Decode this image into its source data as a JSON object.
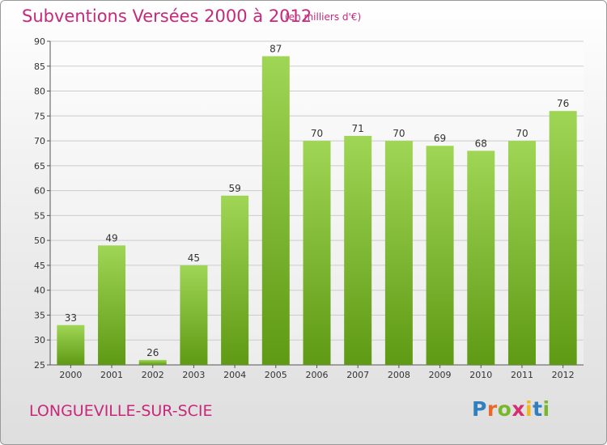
{
  "title": "Subventions Versées 2000 à 2012",
  "subtitle": "(en milliers d'€)",
  "commune": "LONGUEVILLE-SUR-SCIE",
  "logo": {
    "text": "Proxiti",
    "letters": [
      {
        "char": "P",
        "color": "#2f7fc1"
      },
      {
        "char": "r",
        "color": "#e8692b"
      },
      {
        "char": "o",
        "color": "#76b82a"
      },
      {
        "char": "x",
        "color": "#d62f6f"
      },
      {
        "char": "i",
        "color": "#f1b81c"
      },
      {
        "char": "t",
        "color": "#2f7fc1"
      },
      {
        "char": "i",
        "color": "#76b82a"
      }
    ]
  },
  "colors": {
    "accent": "#c8287a",
    "bar_top": "#9fd655",
    "bar_bottom": "#5f9a14"
  },
  "chart_data": {
    "type": "bar",
    "title": "Subventions Versées 2000 à 2012",
    "subtitle": "(en milliers d'€)",
    "categories": [
      "2000",
      "2001",
      "2002",
      "2003",
      "2004",
      "2005",
      "2006",
      "2007",
      "2008",
      "2009",
      "2010",
      "2011",
      "2012"
    ],
    "values": [
      33,
      49,
      26,
      45,
      59,
      87,
      70,
      71,
      70,
      69,
      68,
      70,
      76
    ],
    "ylim": [
      25,
      90
    ],
    "yticks": [
      25,
      30,
      35,
      40,
      45,
      50,
      55,
      60,
      65,
      70,
      75,
      80,
      85,
      90
    ],
    "grid": true,
    "xlabel": "",
    "ylabel": ""
  }
}
